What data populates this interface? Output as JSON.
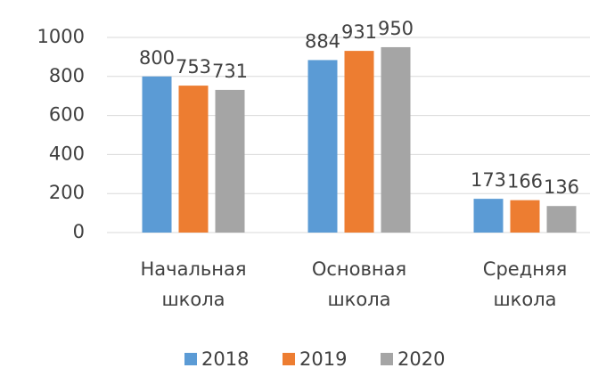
{
  "chart_data": {
    "type": "bar",
    "categories": [
      "Начальная школа",
      "Основная школа",
      "Средняя школа"
    ],
    "series": [
      {
        "name": "2018",
        "color": "#5b9bd5",
        "values": [
          800,
          884,
          173
        ]
      },
      {
        "name": "2019",
        "color": "#ed7d31",
        "values": [
          753,
          931,
          166
        ]
      },
      {
        "name": "2020",
        "color": "#a5a5a5",
        "values": [
          731,
          950,
          136
        ]
      }
    ],
    "ylim": [
      0,
      1000
    ],
    "yticks": [
      0,
      200,
      400,
      600,
      800,
      1000
    ],
    "grid": true,
    "legend": "bottom"
  }
}
